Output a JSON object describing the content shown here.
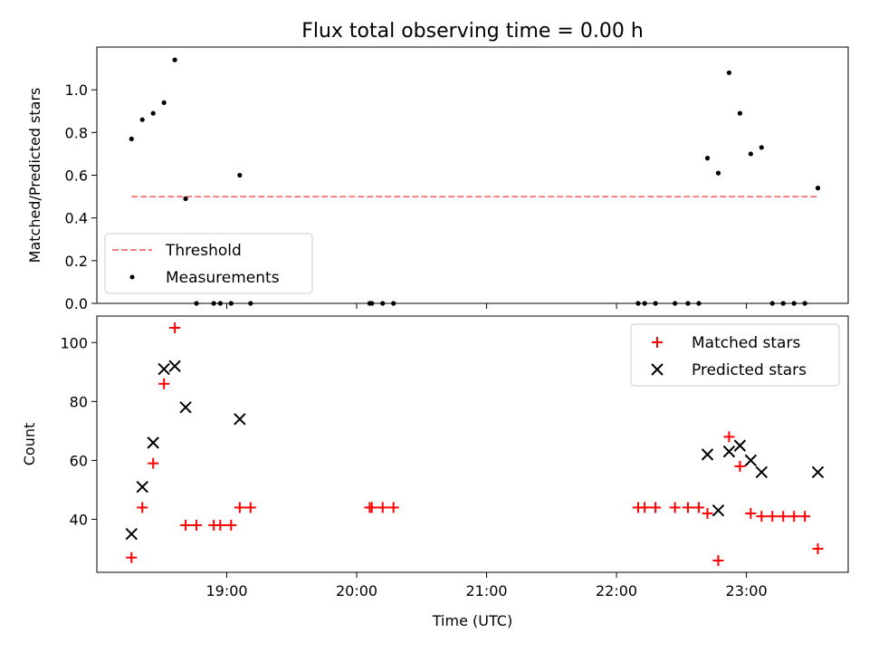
{
  "chart_data": [
    {
      "type": "scatter",
      "title": "Flux total observing time = 0.00 h",
      "ylabel": "Matched/Predicted stars",
      "xlabel": "",
      "ylim": [
        0,
        1.2
      ],
      "xlim": [
        "18:00",
        "23:47"
      ],
      "yticks": [
        "0.0",
        "0.2",
        "0.4",
        "0.6",
        "0.8",
        "1.0"
      ],
      "legend_position": "lower-left",
      "threshold": {
        "name": "Threshold",
        "value": 0.5,
        "x_start": "18:16",
        "x_end": "23:33",
        "color": "#f08080"
      },
      "series": [
        {
          "name": "Measurements",
          "color": "#000000",
          "points": [
            [
              "18:16",
              0.77
            ],
            [
              "18:21",
              0.86
            ],
            [
              "18:26",
              0.89
            ],
            [
              "18:31",
              0.94
            ],
            [
              "18:36",
              1.14
            ],
            [
              "18:41",
              0.49
            ],
            [
              "18:46",
              0.0
            ],
            [
              "18:54",
              0.0
            ],
            [
              "18:57",
              0.0
            ],
            [
              "19:02",
              0.0
            ],
            [
              "19:06",
              0.6
            ],
            [
              "19:11",
              0.0
            ],
            [
              "20:06",
              0.0
            ],
            [
              "20:07",
              0.0
            ],
            [
              "20:12",
              0.0
            ],
            [
              "20:17",
              0.0
            ],
            [
              "22:10",
              0.0
            ],
            [
              "22:13",
              0.0
            ],
            [
              "22:18",
              0.0
            ],
            [
              "22:27",
              0.0
            ],
            [
              "22:33",
              0.0
            ],
            [
              "22:38",
              0.0
            ],
            [
              "22:42",
              0.68
            ],
            [
              "22:47",
              0.61
            ],
            [
              "22:52",
              1.08
            ],
            [
              "22:57",
              0.89
            ],
            [
              "23:02",
              0.7
            ],
            [
              "23:07",
              0.73
            ],
            [
              "23:12",
              0.0
            ],
            [
              "23:17",
              0.0
            ],
            [
              "23:22",
              0.0
            ],
            [
              "23:27",
              0.0
            ],
            [
              "23:33",
              0.54
            ]
          ]
        }
      ]
    },
    {
      "type": "scatter",
      "title": "",
      "ylabel": "Count",
      "xlabel": "Time (UTC)",
      "ylim": [
        22,
        109
      ],
      "xlim": [
        "18:00",
        "23:47"
      ],
      "yticks": [
        "40",
        "60",
        "80",
        "100"
      ],
      "xticks": [
        "19:00",
        "20:00",
        "21:00",
        "22:00",
        "23:00"
      ],
      "legend_position": "upper-right",
      "series": [
        {
          "name": "Matched stars",
          "marker": "plus",
          "color": "#ff0000",
          "points": [
            [
              "18:16",
              27
            ],
            [
              "18:21",
              44
            ],
            [
              "18:26",
              59
            ],
            [
              "18:31",
              86
            ],
            [
              "18:36",
              105
            ],
            [
              "18:41",
              38
            ],
            [
              "18:46",
              38
            ],
            [
              "18:54",
              38
            ],
            [
              "18:57",
              38
            ],
            [
              "19:02",
              38
            ],
            [
              "19:06",
              44
            ],
            [
              "19:11",
              44
            ],
            [
              "20:06",
              44
            ],
            [
              "20:07",
              44
            ],
            [
              "20:12",
              44
            ],
            [
              "20:17",
              44
            ],
            [
              "22:10",
              44
            ],
            [
              "22:13",
              44
            ],
            [
              "22:18",
              44
            ],
            [
              "22:27",
              44
            ],
            [
              "22:33",
              44
            ],
            [
              "22:38",
              44
            ],
            [
              "22:42",
              42
            ],
            [
              "22:47",
              26
            ],
            [
              "22:52",
              68
            ],
            [
              "22:57",
              58
            ],
            [
              "23:02",
              42
            ],
            [
              "23:07",
              41
            ],
            [
              "23:12",
              41
            ],
            [
              "23:17",
              41
            ],
            [
              "23:22",
              41
            ],
            [
              "23:27",
              41
            ],
            [
              "23:33",
              30
            ]
          ]
        },
        {
          "name": "Predicted stars",
          "marker": "x",
          "color": "#000000",
          "points": [
            [
              "18:16",
              35
            ],
            [
              "18:21",
              51
            ],
            [
              "18:26",
              66
            ],
            [
              "18:31",
              91
            ],
            [
              "18:36",
              92
            ],
            [
              "18:41",
              78
            ],
            [
              "19:06",
              74
            ],
            [
              "22:42",
              62
            ],
            [
              "22:47",
              43
            ],
            [
              "22:52",
              63
            ],
            [
              "22:57",
              65
            ],
            [
              "23:02",
              60
            ],
            [
              "23:07",
              56
            ],
            [
              "23:33",
              56
            ]
          ]
        }
      ]
    }
  ]
}
